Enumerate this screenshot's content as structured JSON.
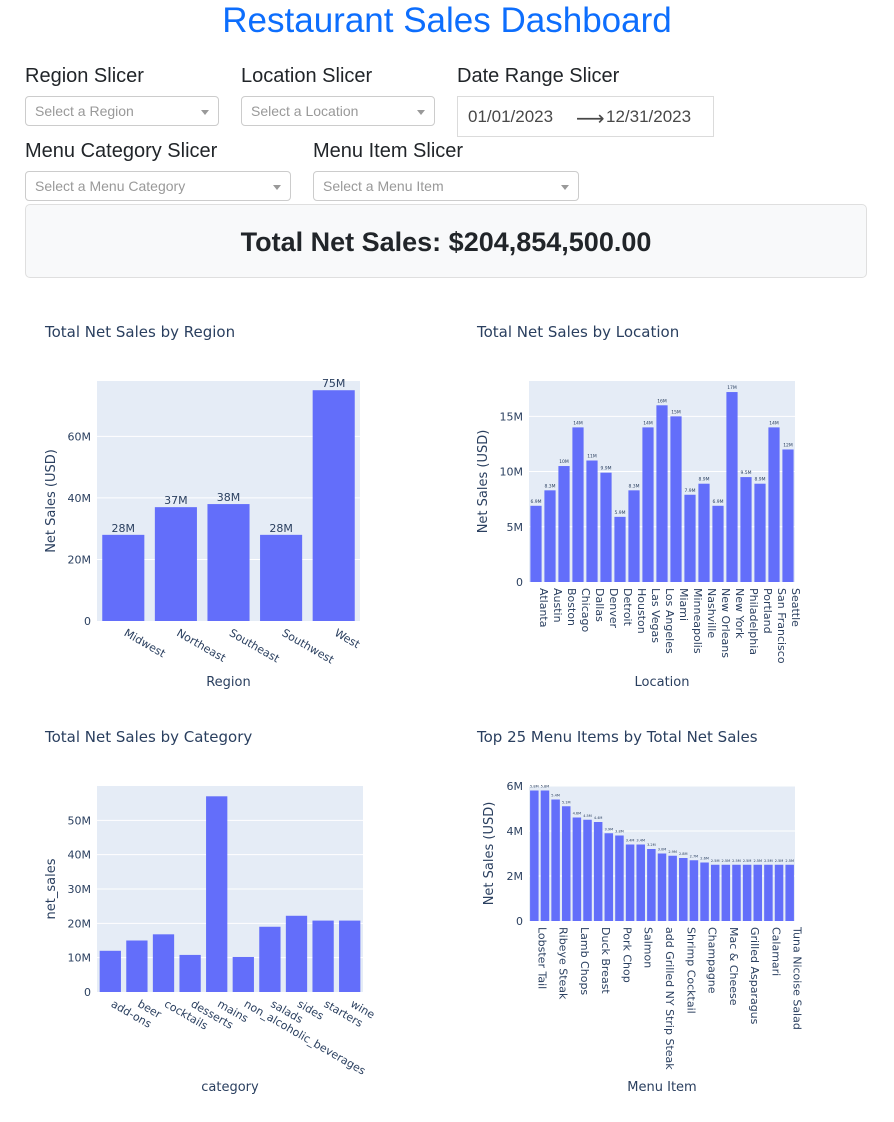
{
  "header": {
    "title": "Restaurant Sales Dashboard"
  },
  "filters": {
    "region": {
      "label": "Region Slicer",
      "placeholder": "Select a Region"
    },
    "location": {
      "label": "Location Slicer",
      "placeholder": "Select a Location"
    },
    "date": {
      "label": "Date Range Slicer",
      "start": "01/01/2023",
      "end": "12/31/2023",
      "separator": "⟶"
    },
    "category": {
      "label": "Menu Category Slicer",
      "placeholder": "Select a Menu Category"
    },
    "item": {
      "label": "Menu Item Slicer",
      "placeholder": "Select a Menu Item"
    }
  },
  "summary": {
    "total_text": "Total Net Sales: $204,854,500.00"
  },
  "colors": {
    "bar": "#636efa",
    "plot_bg": "#e5ecf6",
    "title": "#0d6efd",
    "text": "#2a3f5f"
  },
  "chart_data": [
    {
      "type": "bar",
      "title": "Total Net Sales by Region",
      "xlabel": "Region",
      "ylabel": "Net Sales (USD)",
      "categories": [
        "Midwest",
        "Northeast",
        "Southeast",
        "Southwest",
        "West"
      ],
      "values": [
        28000000,
        37000000,
        38000000,
        28000000,
        75000000
      ],
      "labels": [
        "28M",
        "37M",
        "38M",
        "28M",
        "75M"
      ],
      "ylim": [
        0,
        78000000
      ],
      "yticks": [
        0,
        20000000,
        40000000,
        60000000
      ],
      "ytick_labels": [
        "0",
        "20M",
        "40M",
        "60M"
      ],
      "tick_angle": 30
    },
    {
      "type": "bar",
      "title": "Total Net Sales by Location",
      "xlabel": "Location",
      "ylabel": "Net Sales (USD)",
      "categories": [
        "Atlanta",
        "Austin",
        "Boston",
        "Chicago",
        "Dallas",
        "Denver",
        "Detroit",
        "Houston",
        "Las Vegas",
        "Los Angeles",
        "Miami",
        "Minneapolis",
        "Nashville",
        "New Orleans",
        "New York",
        "Philadelphia",
        "Portland",
        "San Francisco",
        "Seattle"
      ],
      "values": [
        6900000,
        8300000,
        10500000,
        14000000,
        11000000,
        9900000,
        5900000,
        8300000,
        14000000,
        16000000,
        15000000,
        7900000,
        8900000,
        6900000,
        17200000,
        9500000,
        8900000,
        14000000,
        12000000
      ],
      "labels": [
        "6.9M",
        "8.3M",
        "10M",
        "14M",
        "11M",
        "9.9M",
        "5.9M",
        "8.3M",
        "14M",
        "16M",
        "15M",
        "7.9M",
        "8.9M",
        "6.9M",
        "17M",
        "9.5M",
        "8.9M",
        "14M",
        "12M"
      ],
      "ylim": [
        0,
        18200000
      ],
      "yticks": [
        0,
        5000000,
        10000000,
        15000000
      ],
      "ytick_labels": [
        "0",
        "5M",
        "10M",
        "15M"
      ],
      "tick_angle": 90
    },
    {
      "type": "bar",
      "title": "Total Net Sales by Category",
      "xlabel": "category",
      "ylabel": "net_sales",
      "categories": [
        "add-ons",
        "beer",
        "cocktails",
        "desserts",
        "mains",
        "non_alcoholic_beverages",
        "salads",
        "sides",
        "starters",
        "wine"
      ],
      "values": [
        12000000,
        15000000,
        16800000,
        10800000,
        57000000,
        10200000,
        19000000,
        22200000,
        20800000,
        20800000
      ],
      "labels": [],
      "ylim": [
        0,
        60000000
      ],
      "yticks": [
        0,
        10000000,
        20000000,
        30000000,
        40000000,
        50000000
      ],
      "ytick_labels": [
        "0",
        "10M",
        "20M",
        "30M",
        "40M",
        "50M"
      ],
      "tick_angle": 30
    },
    {
      "type": "bar",
      "title": "Top 25 Menu Items by Total Net Sales",
      "xlabel": "Menu Item",
      "ylabel": "Net Sales (USD)",
      "categories": [
        "Lobster Tail",
        "",
        "Ribeye Steak",
        "",
        "Lamb Chops",
        "",
        "Duck Breast",
        "",
        "Pork Chop",
        "",
        "Salmon",
        "",
        "add Grilled NY Strip Steak",
        "",
        "Shrimp Cocktail",
        "",
        "Champagne",
        "",
        "Mac & Cheese",
        "",
        "Grilled Asparagus",
        "",
        "Calamari",
        "",
        "Tuna Nicoise Salad"
      ],
      "values": [
        5800000,
        5800000,
        5400000,
        5100000,
        4600000,
        4500000,
        4400000,
        3900000,
        3800000,
        3400000,
        3400000,
        3200000,
        3000000,
        2900000,
        2800000,
        2700000,
        2600000,
        2500000,
        2500000,
        2500000,
        2500000,
        2500000,
        2500000,
        2500000,
        2500000
      ],
      "labels": [
        "5.8M",
        "5.8M",
        "5.4M",
        "5.1M",
        "4.6M",
        "4.5M",
        "4.4M",
        "3.9M",
        "3.8M",
        "3.4M",
        "3.4M",
        "3.2M",
        "3.0M",
        "2.9M",
        "2.8M",
        "2.7M",
        "2.6M",
        "2.5M",
        "2.5M",
        "2.5M",
        "2.5M",
        "2.5M",
        "2.5M",
        "2.5M",
        "2.5M"
      ],
      "ylim": [
        0,
        6000000
      ],
      "yticks": [
        0,
        2000000,
        4000000,
        6000000
      ],
      "ytick_labels": [
        "0",
        "2M",
        "4M",
        "6M"
      ],
      "tick_angle": 90
    }
  ]
}
